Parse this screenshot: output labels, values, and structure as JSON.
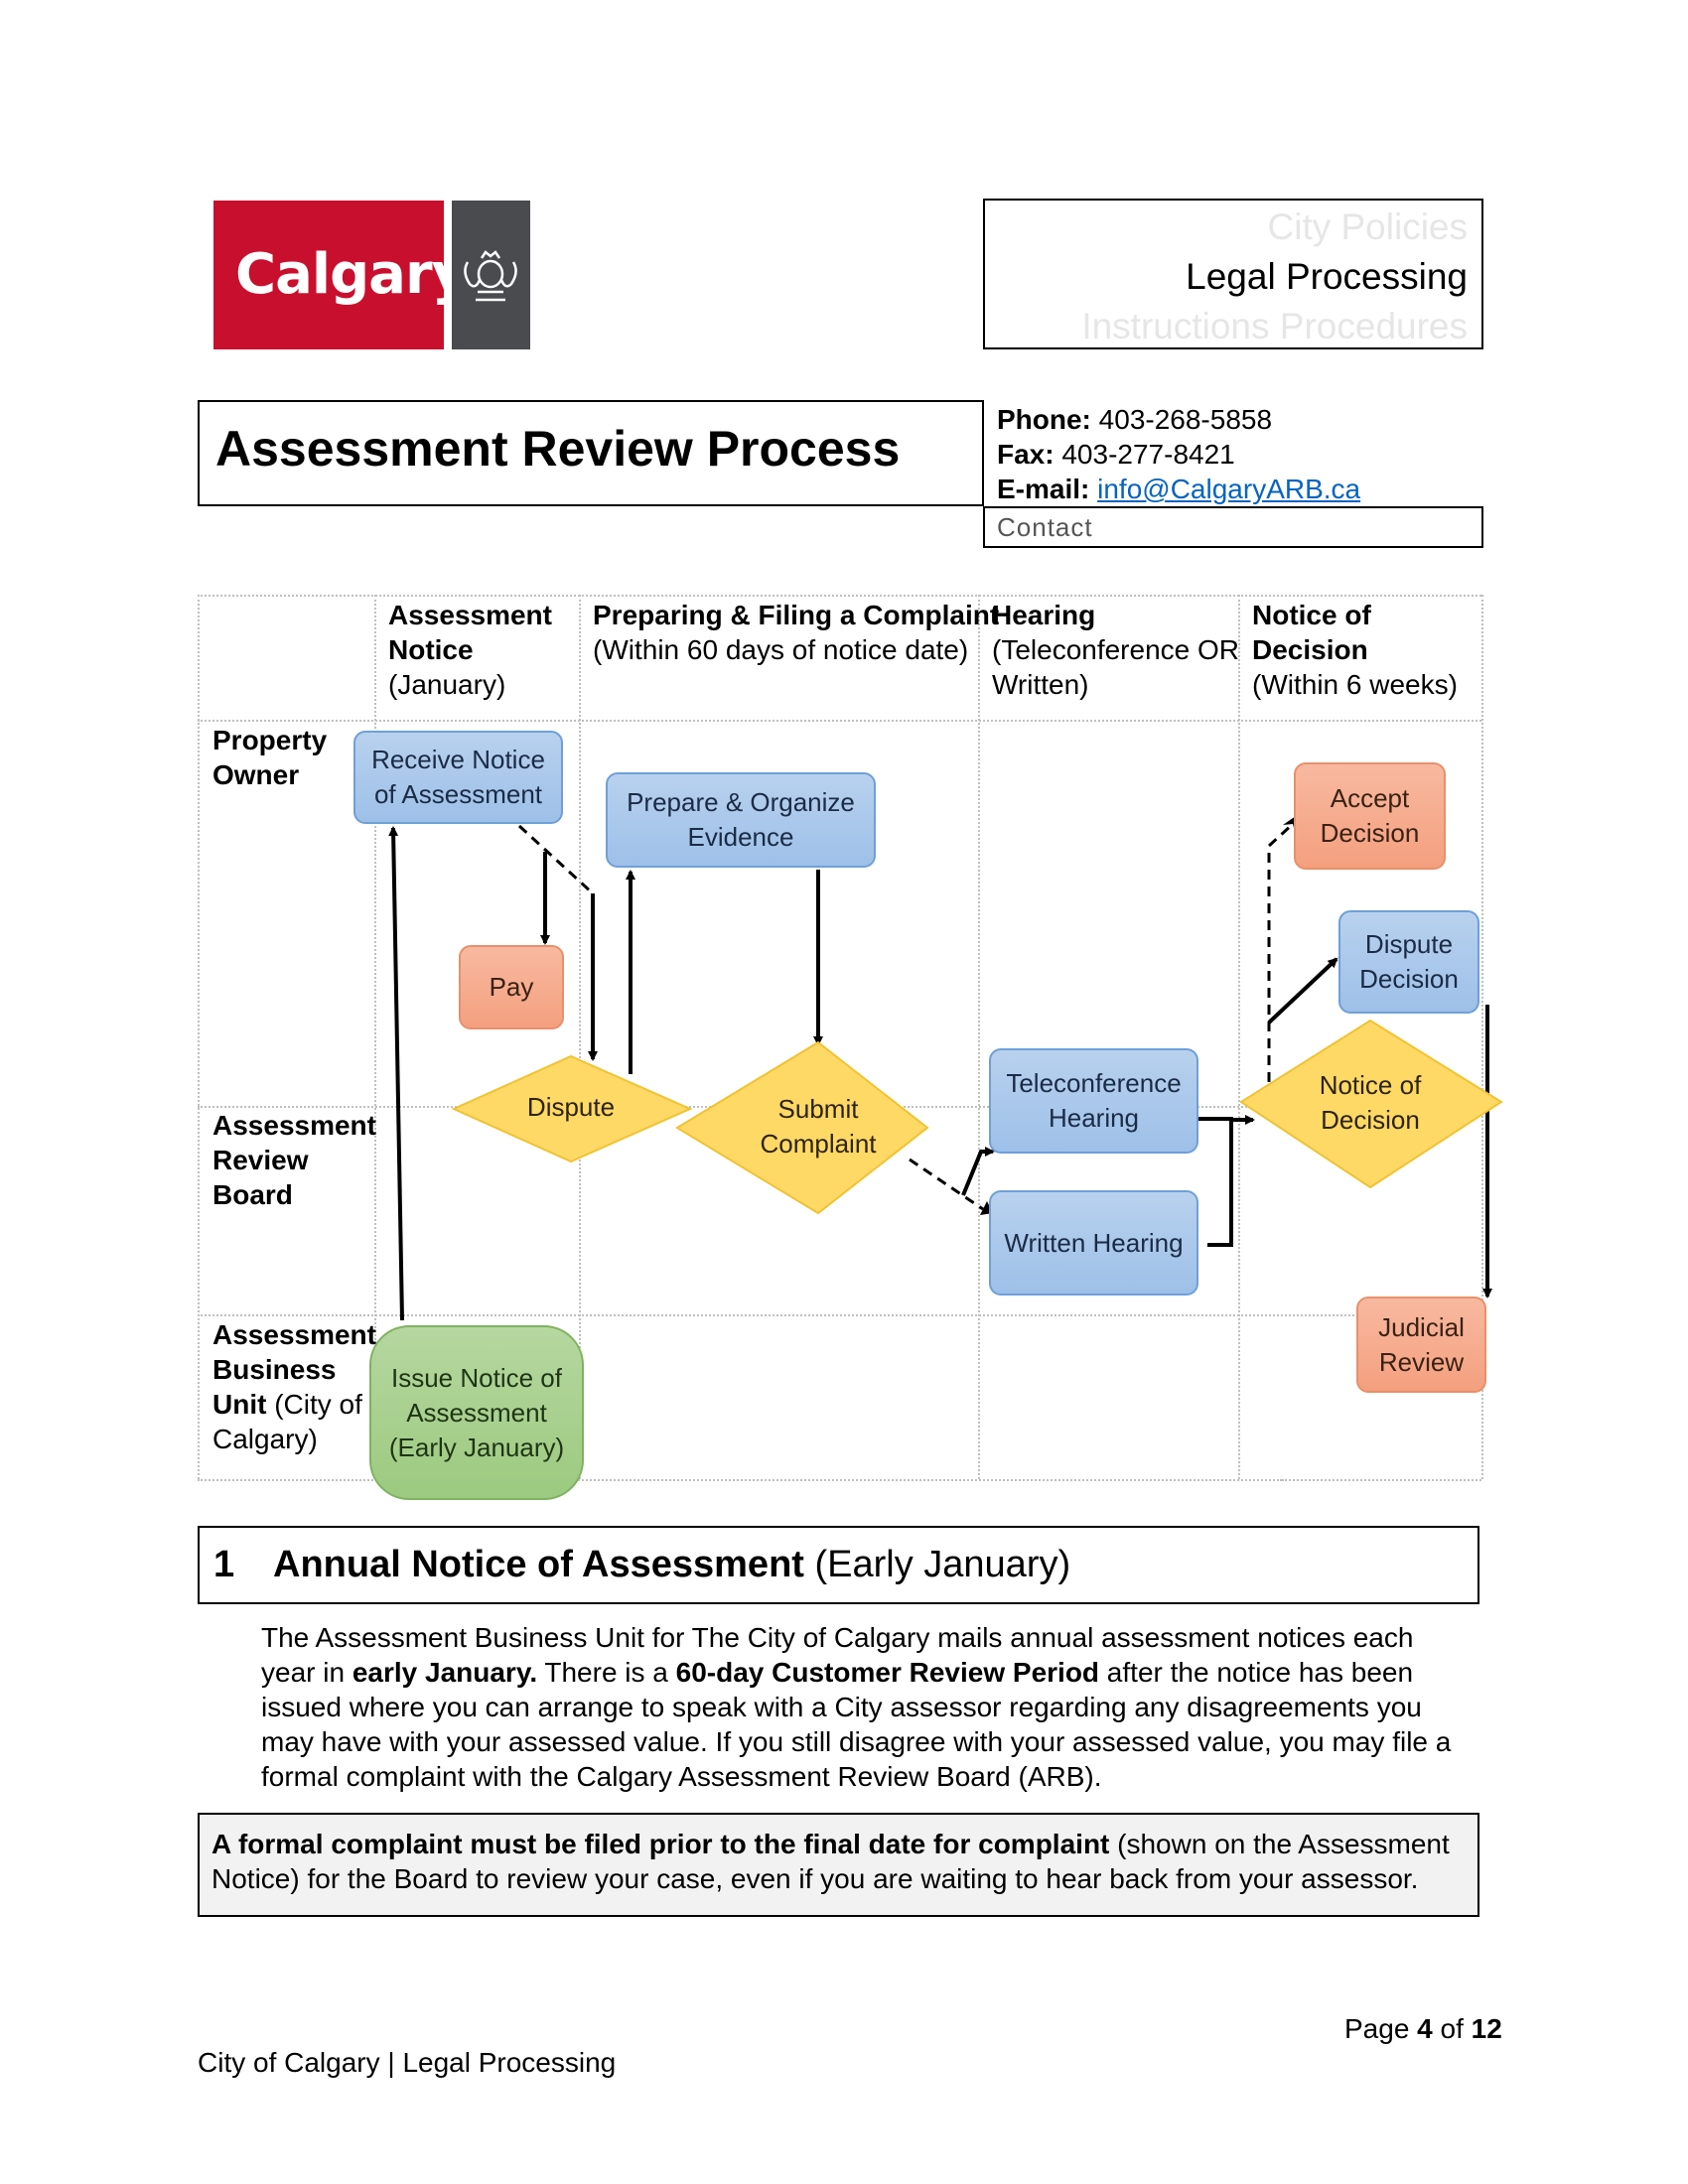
{
  "logo": {
    "wordmark": "Calgary"
  },
  "header_tags": {
    "tag1": "City Policies",
    "tag2": "Legal Processing",
    "tag3": "Instructions Procedures"
  },
  "title": "Assessment Review Process",
  "contact": {
    "phone_label": "Phone:",
    "phone": "403-268-5858",
    "fax_label": "Fax:",
    "fax": "403-277-8421",
    "email_label": "E-mail:",
    "email": "info@CalgaryARB.ca",
    "box_label": "Contact"
  },
  "flow": {
    "columns": [
      {
        "title": "Assessment",
        "title2": "Notice",
        "sub": "(January)"
      },
      {
        "title": "Preparing & Filing a Complaint",
        "sub": "(Within 60 days of notice date)"
      },
      {
        "title": "Hearing",
        "sub": "(Teleconference OR",
        "sub2": "Written)"
      },
      {
        "title": "Notice of",
        "title2": "Decision",
        "sub": "(Within 6 weeks)"
      }
    ],
    "rows": {
      "owner": [
        "Property",
        "Owner"
      ],
      "board": [
        "Assessment",
        "Review",
        "Board"
      ],
      "unit": {
        "line1": "Assessment",
        "line2": "Business",
        "line3b": "Unit",
        "line3": " (City of",
        "line4": "Calgary)"
      }
    },
    "nodes": {
      "receive_notice": [
        "Receive Notice",
        "of Assessment"
      ],
      "pay": "Pay",
      "dispute": "Dispute",
      "prepare": [
        "Prepare & Organize",
        "Evidence"
      ],
      "submit": [
        "Submit",
        "Complaint"
      ],
      "teleconference": [
        "Teleconference",
        "Hearing"
      ],
      "written": "Written Hearing",
      "notice_decision": [
        "Notice of",
        "Decision"
      ],
      "accept": [
        "Accept",
        "Decision"
      ],
      "dispute_decision": [
        "Dispute",
        "Decision"
      ],
      "judicial": [
        "Judicial",
        "Review"
      ],
      "issue_notice": [
        "Issue Notice of",
        "Assessment",
        "(Early January)"
      ]
    }
  },
  "section": {
    "number": "1",
    "title": "Annual Notice of Assessment",
    "title_suffix": " (Early January)"
  },
  "paragraph": {
    "p1": "The Assessment Business Unit for The City of Calgary mails annual assessment notices each year in ",
    "p1b": "early January.",
    "p2": " There is a ",
    "p2b": "60-day Customer Review Period",
    "p3": " after the notice has been issued where you can arrange to speak with a City assessor regarding any disagreements you may have with your assessed value. If you still disagree with your assessed value, you may file a formal complaint with the Calgary Assessment Review Board (ARB)."
  },
  "note": {
    "bold": "A formal complaint must be filed prior to the final date for complaint",
    "rest": " (shown on the Assessment Notice) for the Board to review your case, even if you are waiting to hear back from your assessor."
  },
  "page": {
    "label": "Page ",
    "current": "4",
    "of": " of ",
    "total": "12"
  },
  "footer": "City of Calgary | Legal Processing"
}
